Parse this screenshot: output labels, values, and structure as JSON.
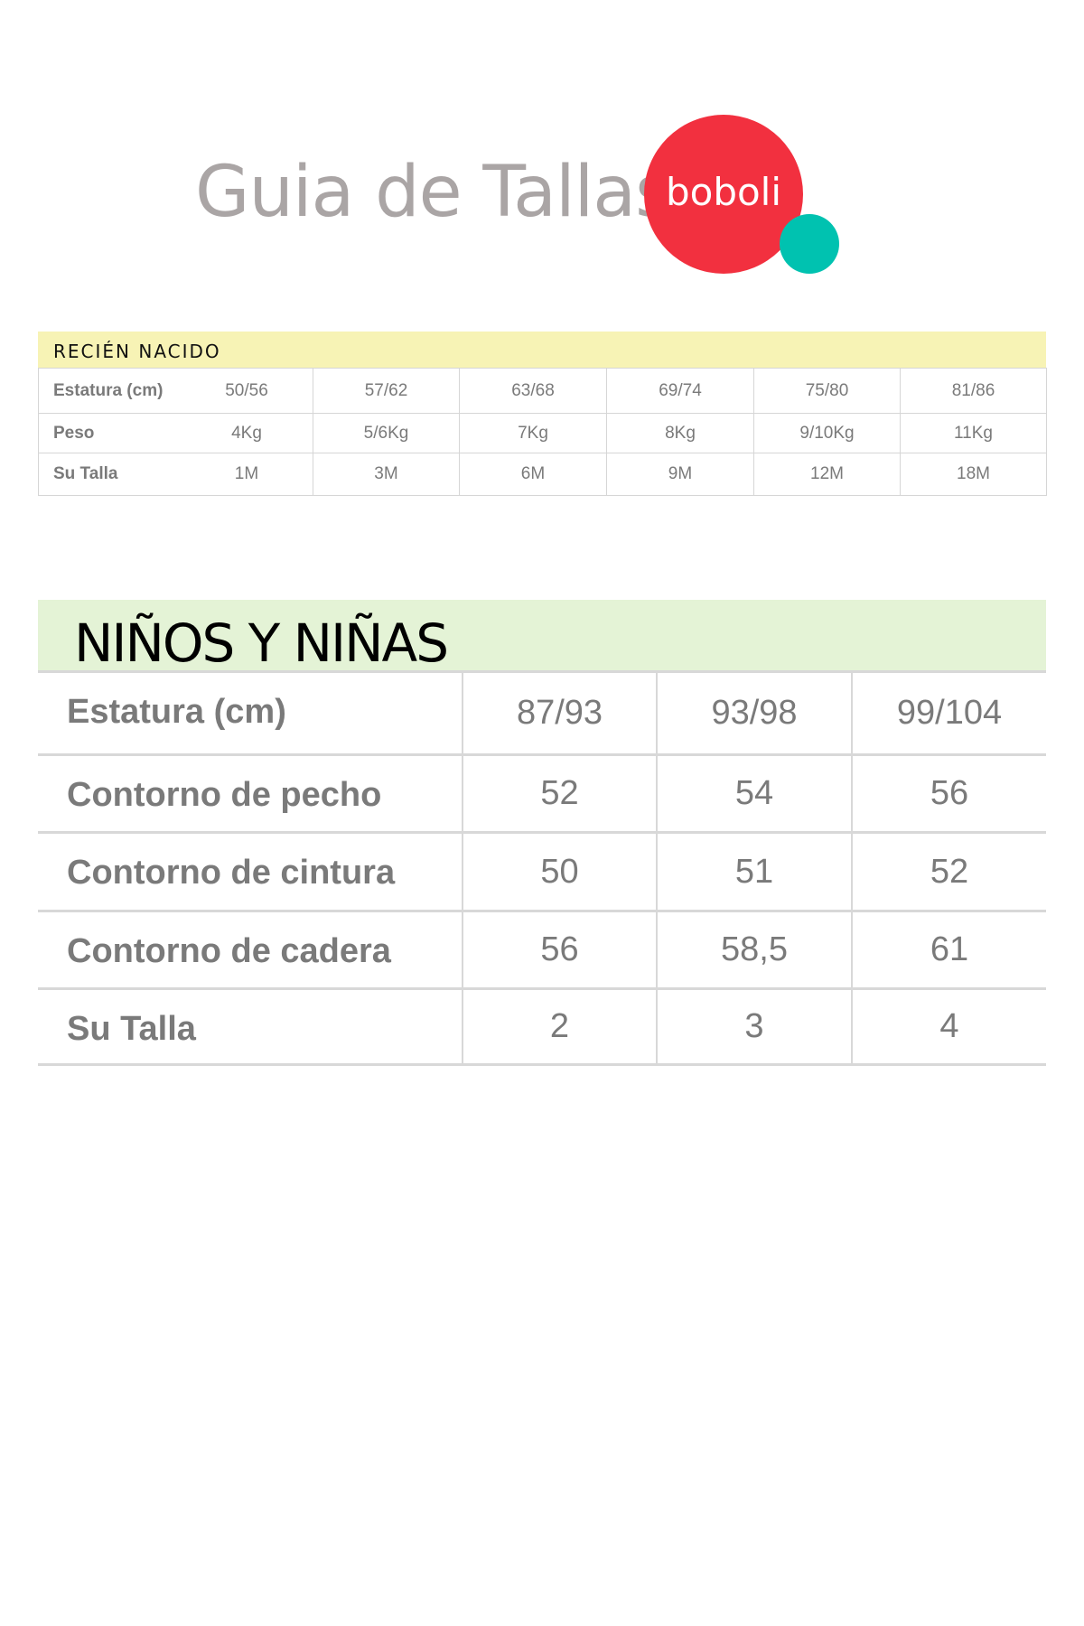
{
  "header": {
    "title": "Guia de Tallas",
    "logo_text": "boboli",
    "logo_colors": {
      "red": "#f2303f",
      "teal": "#00c2b0"
    }
  },
  "newborn": {
    "section_title": "RECIÉN NACIDO",
    "rows": [
      {
        "label": "Estatura (cm)",
        "values": [
          "50/56",
          "57/62",
          "63/68",
          "69/74",
          "75/80",
          "81/86"
        ]
      },
      {
        "label": "Peso",
        "values": [
          "4Kg",
          "5/6Kg",
          "7Kg",
          "8Kg",
          "9/10Kg",
          "11Kg"
        ]
      },
      {
        "label": "Su Talla",
        "values": [
          "1M",
          "3M",
          "6M",
          "9M",
          "12M",
          "18M"
        ]
      }
    ]
  },
  "kids": {
    "section_title": "NIÑOS Y NIÑAS",
    "rows": [
      {
        "label": "Estatura (cm)",
        "values": [
          "87/93",
          "93/98",
          "99/104"
        ]
      },
      {
        "label": "Contorno de pecho",
        "values": [
          "52",
          "54",
          "56"
        ]
      },
      {
        "label": "Contorno de cintura",
        "values": [
          "50",
          "51",
          "52"
        ]
      },
      {
        "label": "Contorno de cadera",
        "values": [
          "56",
          "58,5",
          "61"
        ]
      },
      {
        "label": "Su Talla",
        "values": [
          "2",
          "3",
          "4"
        ]
      }
    ]
  }
}
